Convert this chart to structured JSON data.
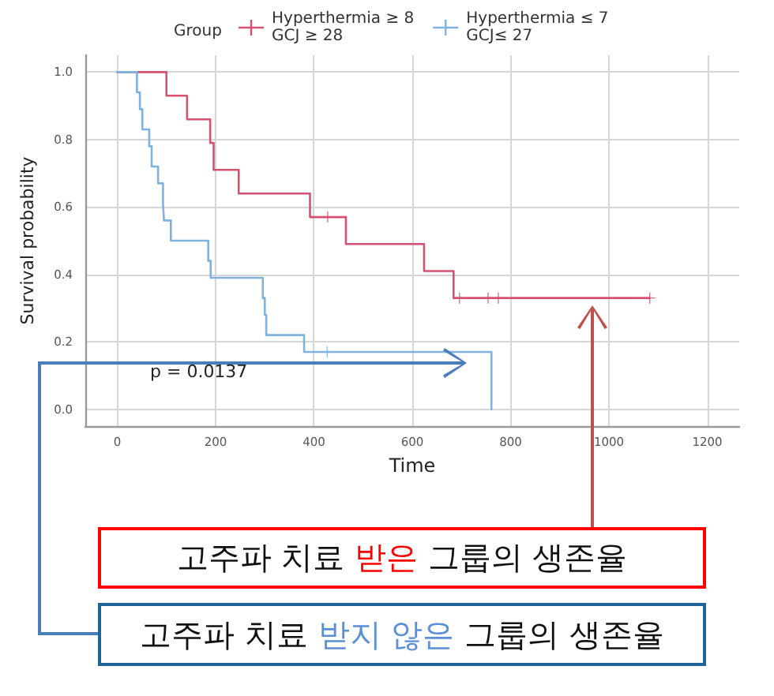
{
  "chart_data": {
    "type": "step",
    "legend_title": "Group",
    "xlabel": "Time",
    "ylabel": "Survival probability",
    "xlim": [
      -65,
      1265
    ],
    "xticks": [
      0,
      200,
      400,
      600,
      800,
      1000,
      1200
    ],
    "ylim": [
      -0.05,
      1.05
    ],
    "yticks": [
      {
        "value": 0,
        "label": "0.0"
      },
      0.2,
      0.4,
      0.6,
      0.8,
      {
        "value": 1,
        "label": "1.0"
      }
    ],
    "grid": true,
    "legend": "top",
    "series": [
      {
        "name": "Hyperthermia ≥ 8\nGCJ ≥ 28",
        "color": "#d6506f",
        "x": [
          0,
          100,
          142,
          189,
          196,
          247,
          392,
          465,
          624,
          684,
          1083
        ],
        "values": [
          1,
          0.93,
          0.86,
          0.79,
          0.71,
          0.64,
          0.57,
          0.49,
          0.41,
          0.33,
          0.33
        ]
      },
      {
        "name": "Hyperthermia ≤ 7\nGCJ≤ 27",
        "color": "#7fb2dd",
        "x": [
          0,
          40,
          46,
          51,
          65,
          70,
          83,
          93,
          95,
          109,
          185,
          190,
          296,
          300,
          303,
          380,
          761
        ],
        "values": [
          1,
          0.94,
          0.89,
          0.83,
          0.78,
          0.72,
          0.67,
          0.61,
          0.56,
          0.5,
          0.44,
          0.39,
          0.33,
          0.28,
          0.22,
          0.17,
          0
        ]
      },
      {
        "type": "scatter",
        "marker": "cross",
        "color": "#d6506f",
        "x": [
          428,
          696,
          754,
          775,
          1083
        ],
        "values": [
          0.57,
          0.33,
          0.33,
          0.33,
          0.33
        ]
      },
      {
        "type": "scatter",
        "marker": "cross",
        "color": "#7fb2dd",
        "x": [
          427
        ],
        "values": [
          0.17
        ]
      }
    ],
    "annotations": [
      "p = 0.0137",
      "고주파 치료 받은 그룹의 생존율",
      "고주파 치료 받지 않은 그룹의 생존율"
    ]
  }
}
